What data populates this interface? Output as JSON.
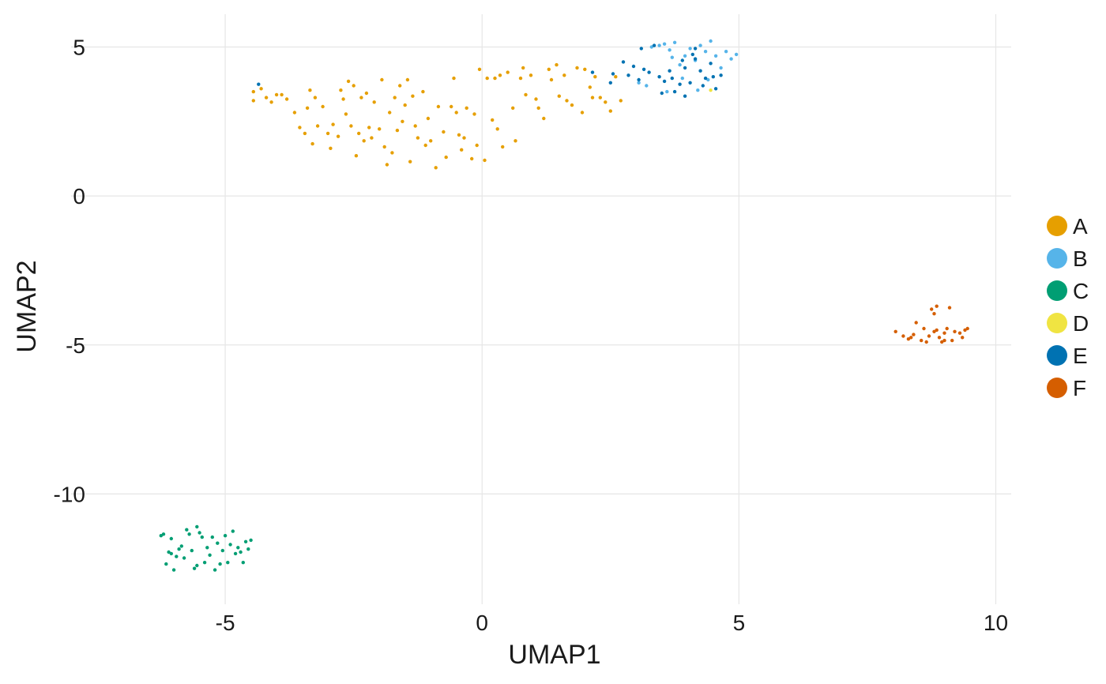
{
  "chart_data": {
    "type": "scatter",
    "title": "",
    "xlabel": "UMAP1",
    "ylabel": "UMAP2",
    "xlim": [
      -8.0,
      10.3
    ],
    "ylim": [
      -13.7,
      6.1
    ],
    "x_ticks": [
      -5,
      0,
      5,
      10
    ],
    "y_ticks": [
      -10,
      -5,
      0,
      5
    ],
    "x_tick_labels": [
      "-5",
      "0",
      "5",
      "10"
    ],
    "y_tick_labels": [
      "-10",
      "-5",
      "0",
      "5"
    ],
    "grid": true,
    "legend_position": "right",
    "colors": {
      "A": "#E69F00",
      "B": "#56B4E9",
      "C": "#009E73",
      "D": "#F0E442",
      "E": "#0072B2",
      "F": "#D55E00"
    },
    "series": [
      {
        "name": "A",
        "points": [
          [
            -4.45,
            3.5
          ],
          [
            -4.45,
            3.2
          ],
          [
            -4.3,
            3.6
          ],
          [
            -4.2,
            3.3
          ],
          [
            -4.1,
            3.15
          ],
          [
            -4.0,
            3.4
          ],
          [
            -3.9,
            3.4
          ],
          [
            -3.8,
            3.25
          ],
          [
            -3.65,
            2.8
          ],
          [
            -3.55,
            2.3
          ],
          [
            -3.45,
            2.1
          ],
          [
            -3.4,
            2.95
          ],
          [
            -3.35,
            3.55
          ],
          [
            -3.3,
            1.75
          ],
          [
            -3.25,
            3.3
          ],
          [
            -3.2,
            2.35
          ],
          [
            -3.1,
            3.0
          ],
          [
            -3.0,
            2.1
          ],
          [
            -2.95,
            1.6
          ],
          [
            -2.9,
            2.4
          ],
          [
            -2.8,
            2.0
          ],
          [
            -2.75,
            3.55
          ],
          [
            -2.7,
            3.25
          ],
          [
            -2.65,
            2.75
          ],
          [
            -2.6,
            3.85
          ],
          [
            -2.55,
            2.35
          ],
          [
            -2.5,
            3.7
          ],
          [
            -2.45,
            1.35
          ],
          [
            -2.4,
            2.1
          ],
          [
            -2.35,
            3.3
          ],
          [
            -2.3,
            1.85
          ],
          [
            -2.25,
            3.45
          ],
          [
            -2.2,
            2.3
          ],
          [
            -2.15,
            1.95
          ],
          [
            -2.1,
            3.15
          ],
          [
            -2.0,
            2.25
          ],
          [
            -1.95,
            3.9
          ],
          [
            -1.9,
            1.65
          ],
          [
            -1.85,
            1.05
          ],
          [
            -1.8,
            2.8
          ],
          [
            -1.75,
            1.45
          ],
          [
            -1.7,
            3.3
          ],
          [
            -1.65,
            2.2
          ],
          [
            -1.6,
            3.7
          ],
          [
            -1.55,
            2.5
          ],
          [
            -1.5,
            3.05
          ],
          [
            -1.45,
            3.9
          ],
          [
            -1.4,
            1.15
          ],
          [
            -1.35,
            3.35
          ],
          [
            -1.3,
            2.35
          ],
          [
            -1.25,
            1.95
          ],
          [
            -1.15,
            3.5
          ],
          [
            -1.1,
            1.7
          ],
          [
            -1.05,
            2.6
          ],
          [
            -1.0,
            1.85
          ],
          [
            -0.9,
            0.95
          ],
          [
            -0.85,
            3.0
          ],
          [
            -0.75,
            2.15
          ],
          [
            -0.7,
            1.3
          ],
          [
            -0.6,
            3.0
          ],
          [
            -0.55,
            3.95
          ],
          [
            -0.5,
            2.8
          ],
          [
            -0.45,
            2.05
          ],
          [
            -0.4,
            1.55
          ],
          [
            -0.35,
            1.95
          ],
          [
            -0.3,
            2.95
          ],
          [
            -0.2,
            1.25
          ],
          [
            -0.15,
            2.75
          ],
          [
            -0.1,
            1.7
          ],
          [
            -0.05,
            4.25
          ],
          [
            0.05,
            1.2
          ],
          [
            0.1,
            3.95
          ],
          [
            0.2,
            2.55
          ],
          [
            0.25,
            3.95
          ],
          [
            0.3,
            2.25
          ],
          [
            0.35,
            4.05
          ],
          [
            0.4,
            1.65
          ],
          [
            0.5,
            4.15
          ],
          [
            0.6,
            2.95
          ],
          [
            0.65,
            1.85
          ],
          [
            0.75,
            3.95
          ],
          [
            0.8,
            4.3
          ],
          [
            0.85,
            3.4
          ],
          [
            0.95,
            4.05
          ],
          [
            1.05,
            3.25
          ],
          [
            1.1,
            2.95
          ],
          [
            1.2,
            2.6
          ],
          [
            1.3,
            4.25
          ],
          [
            1.35,
            3.9
          ],
          [
            1.45,
            4.4
          ],
          [
            1.5,
            3.35
          ],
          [
            1.6,
            4.05
          ],
          [
            1.65,
            3.2
          ],
          [
            1.75,
            3.05
          ],
          [
            1.85,
            4.3
          ],
          [
            1.95,
            2.8
          ],
          [
            2.0,
            4.25
          ],
          [
            2.1,
            3.65
          ],
          [
            2.15,
            3.3
          ],
          [
            2.2,
            4.0
          ],
          [
            2.3,
            3.3
          ],
          [
            2.4,
            3.15
          ],
          [
            2.5,
            2.85
          ],
          [
            2.6,
            4.0
          ],
          [
            2.7,
            3.2
          ]
        ]
      },
      {
        "name": "B",
        "points": [
          [
            3.3,
            5.0
          ],
          [
            3.45,
            5.05
          ],
          [
            3.55,
            5.1
          ],
          [
            3.65,
            4.9
          ],
          [
            3.75,
            5.15
          ],
          [
            3.85,
            4.4
          ],
          [
            3.95,
            4.7
          ],
          [
            4.05,
            4.95
          ],
          [
            4.15,
            4.55
          ],
          [
            4.25,
            5.05
          ],
          [
            4.35,
            4.85
          ],
          [
            4.45,
            5.2
          ],
          [
            4.55,
            4.7
          ],
          [
            4.65,
            4.3
          ],
          [
            4.75,
            4.85
          ],
          [
            4.85,
            4.6
          ],
          [
            4.95,
            4.75
          ],
          [
            3.05,
            3.8
          ],
          [
            3.2,
            3.7
          ],
          [
            3.6,
            3.5
          ],
          [
            3.7,
            4.65
          ],
          [
            4.2,
            3.55
          ],
          [
            4.4,
            3.9
          ],
          [
            3.9,
            3.95
          ]
        ]
      },
      {
        "name": "C",
        "points": [
          [
            -6.25,
            -11.4
          ],
          [
            -6.2,
            -11.35
          ],
          [
            -6.15,
            -12.35
          ],
          [
            -6.1,
            -11.95
          ],
          [
            -6.05,
            -11.5
          ],
          [
            -6.0,
            -12.55
          ],
          [
            -5.95,
            -12.1
          ],
          [
            -5.9,
            -11.85
          ],
          [
            -5.85,
            -11.75
          ],
          [
            -5.8,
            -12.15
          ],
          [
            -5.75,
            -11.2
          ],
          [
            -5.7,
            -11.35
          ],
          [
            -5.65,
            -11.9
          ],
          [
            -5.6,
            -12.5
          ],
          [
            -5.55,
            -12.4
          ],
          [
            -5.5,
            -11.3
          ],
          [
            -5.45,
            -11.45
          ],
          [
            -5.4,
            -12.3
          ],
          [
            -5.35,
            -11.8
          ],
          [
            -5.3,
            -12.05
          ],
          [
            -5.25,
            -11.45
          ],
          [
            -5.2,
            -12.55
          ],
          [
            -5.15,
            -11.65
          ],
          [
            -5.1,
            -12.35
          ],
          [
            -5.05,
            -11.9
          ],
          [
            -5.0,
            -11.4
          ],
          [
            -4.95,
            -12.3
          ],
          [
            -4.9,
            -11.7
          ],
          [
            -4.85,
            -11.25
          ],
          [
            -4.8,
            -12.0
          ],
          [
            -4.75,
            -11.8
          ],
          [
            -4.7,
            -11.95
          ],
          [
            -4.65,
            -12.3
          ],
          [
            -4.6,
            -11.6
          ],
          [
            -4.55,
            -11.85
          ],
          [
            -4.5,
            -11.55
          ],
          [
            -6.05,
            -12.0
          ],
          [
            -5.55,
            -11.1
          ]
        ]
      },
      {
        "name": "D",
        "points": [
          [
            4.45,
            3.55
          ]
        ]
      },
      {
        "name": "E",
        "points": [
          [
            -4.35,
            3.75
          ],
          [
            2.15,
            4.15
          ],
          [
            2.55,
            4.1
          ],
          [
            2.75,
            4.5
          ],
          [
            2.85,
            4.05
          ],
          [
            2.95,
            4.35
          ],
          [
            3.05,
            3.9
          ],
          [
            3.15,
            4.25
          ],
          [
            3.25,
            4.15
          ],
          [
            3.35,
            5.05
          ],
          [
            3.45,
            4.0
          ],
          [
            3.55,
            3.85
          ],
          [
            3.65,
            4.2
          ],
          [
            3.75,
            3.5
          ],
          [
            3.85,
            3.75
          ],
          [
            3.95,
            4.3
          ],
          [
            4.05,
            3.8
          ],
          [
            4.15,
            4.6
          ],
          [
            4.25,
            4.2
          ],
          [
            4.35,
            3.95
          ],
          [
            4.45,
            4.45
          ],
          [
            4.55,
            3.6
          ],
          [
            4.65,
            4.05
          ],
          [
            3.5,
            3.45
          ],
          [
            3.7,
            3.95
          ],
          [
            3.95,
            3.35
          ],
          [
            4.1,
            4.75
          ],
          [
            4.3,
            3.7
          ],
          [
            4.5,
            4.0
          ],
          [
            2.5,
            3.8
          ],
          [
            3.1,
            4.95
          ],
          [
            3.9,
            4.55
          ],
          [
            4.15,
            4.95
          ]
        ]
      },
      {
        "name": "F",
        "points": [
          [
            8.05,
            -4.55
          ],
          [
            8.2,
            -4.7
          ],
          [
            8.3,
            -4.8
          ],
          [
            8.4,
            -4.65
          ],
          [
            8.45,
            -4.25
          ],
          [
            8.55,
            -4.85
          ],
          [
            8.6,
            -4.45
          ],
          [
            8.7,
            -4.7
          ],
          [
            8.75,
            -3.8
          ],
          [
            8.8,
            -3.95
          ],
          [
            8.85,
            -4.5
          ],
          [
            8.9,
            -4.75
          ],
          [
            8.95,
            -4.9
          ],
          [
            9.0,
            -4.6
          ],
          [
            9.05,
            -4.45
          ],
          [
            9.1,
            -3.75
          ],
          [
            9.15,
            -4.85
          ],
          [
            9.2,
            -4.55
          ],
          [
            9.3,
            -4.6
          ],
          [
            9.35,
            -4.75
          ],
          [
            9.4,
            -4.5
          ],
          [
            9.45,
            -4.45
          ],
          [
            8.35,
            -4.75
          ],
          [
            8.65,
            -4.9
          ],
          [
            8.85,
            -3.7
          ],
          [
            9.0,
            -4.85
          ],
          [
            8.8,
            -4.55
          ]
        ]
      }
    ]
  }
}
